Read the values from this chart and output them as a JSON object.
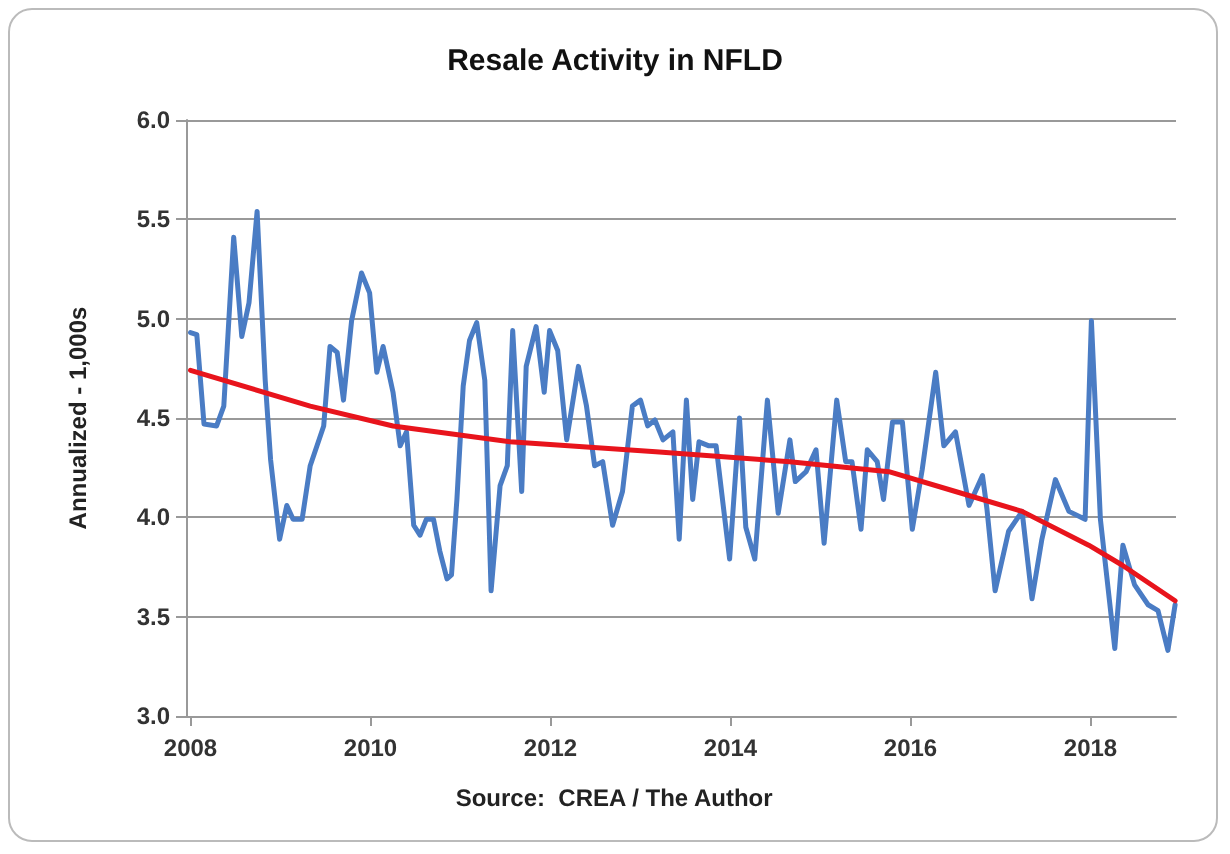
{
  "chart_data": {
    "type": "line",
    "title": "Resale Activity in NFLD",
    "ylabel": "Annualized - 1,000s",
    "annotations": [
      "Source:  CREA / The Author"
    ],
    "xlim": [
      2007.95,
      2018.95
    ],
    "xticks": [
      2008,
      2010,
      2012,
      2014,
      2016,
      2018
    ],
    "ylim": [
      3.0,
      6.0
    ],
    "yticks": [
      {
        "value": 3.0,
        "label": "3.0"
      },
      {
        "value": 3.5,
        "label": "3.5"
      },
      {
        "value": 4.0,
        "label": "4.0"
      },
      {
        "value": 4.5,
        "label": "4.5"
      },
      {
        "value": 5.0,
        "label": "5.0"
      },
      {
        "value": 5.5,
        "label": "5.5"
      },
      {
        "value": 6.0,
        "label": "6.0"
      }
    ],
    "grid": "y",
    "marker": "none",
    "line_style": "solid",
    "series": [
      {
        "color": "#4a7cc4",
        "x": [
          2008.0,
          2008.07,
          2008.15,
          2008.29,
          2008.37,
          2008.48,
          2008.57,
          2008.65,
          2008.74,
          2008.83,
          2008.89,
          2008.99,
          2009.07,
          2009.14,
          2009.24,
          2009.33,
          2009.48,
          2009.55,
          2009.63,
          2009.7,
          2009.79,
          2009.9,
          2009.99,
          2010.07,
          2010.14,
          2010.25,
          2010.33,
          2010.4,
          2010.48,
          2010.55,
          2010.62,
          2010.7,
          2010.77,
          2010.85,
          2010.9,
          2010.96,
          2011.03,
          2011.1,
          2011.18,
          2011.27,
          2011.34,
          2011.44,
          2011.52,
          2011.58,
          2011.68,
          2011.73,
          2011.84,
          2011.93,
          2011.99,
          2012.08,
          2012.18,
          2012.31,
          2012.4,
          2012.49,
          2012.58,
          2012.69,
          2012.8,
          2012.91,
          2013.0,
          2013.08,
          2013.16,
          2013.25,
          2013.36,
          2013.43,
          2013.51,
          2013.58,
          2013.65,
          2013.76,
          2013.84,
          2013.99,
          2014.1,
          2014.17,
          2014.27,
          2014.41,
          2014.53,
          2014.66,
          2014.72,
          2014.84,
          2014.95,
          2015.04,
          2015.18,
          2015.28,
          2015.35,
          2015.45,
          2015.52,
          2015.63,
          2015.7,
          2015.8,
          2015.91,
          2016.02,
          2016.13,
          2016.28,
          2016.37,
          2016.5,
          2016.65,
          2016.8,
          2016.85,
          2016.94,
          2017.09,
          2017.24,
          2017.35,
          2017.46,
          2017.61,
          2017.76,
          2017.94,
          2018.01,
          2018.11,
          2018.27,
          2018.36,
          2018.49,
          2018.64,
          2018.75,
          2018.86,
          2018.94
        ],
        "values": [
          4.93,
          4.92,
          4.47,
          4.46,
          4.56,
          5.41,
          4.91,
          5.08,
          5.54,
          4.69,
          4.29,
          3.89,
          4.06,
          3.99,
          3.99,
          4.26,
          4.46,
          4.86,
          4.83,
          4.59,
          4.99,
          5.23,
          5.13,
          4.73,
          4.86,
          4.63,
          4.36,
          4.43,
          3.96,
          3.91,
          3.99,
          3.99,
          3.83,
          3.69,
          3.71,
          4.09,
          4.66,
          4.89,
          4.98,
          4.69,
          3.63,
          4.16,
          4.26,
          4.94,
          4.13,
          4.76,
          4.96,
          4.63,
          4.94,
          4.84,
          4.39,
          4.76,
          4.56,
          4.26,
          4.28,
          3.96,
          4.13,
          4.56,
          4.59,
          4.46,
          4.49,
          4.39,
          4.43,
          3.89,
          4.59,
          4.09,
          4.38,
          4.36,
          4.36,
          3.79,
          4.5,
          3.95,
          3.79,
          4.59,
          4.02,
          4.39,
          4.18,
          4.23,
          4.34,
          3.87,
          4.59,
          4.28,
          4.28,
          3.94,
          4.34,
          4.28,
          4.09,
          4.48,
          4.48,
          3.94,
          4.24,
          4.73,
          4.36,
          4.43,
          4.06,
          4.21,
          4.04,
          3.63,
          3.93,
          4.03,
          3.59,
          3.89,
          4.19,
          4.03,
          3.99,
          4.99,
          3.99,
          3.34,
          3.86,
          3.66,
          3.56,
          3.53,
          3.33,
          3.56
        ]
      },
      {
        "color": "#e8141c",
        "x": [
          2008.0,
          2009.33,
          2010.25,
          2011.55,
          2013.17,
          2014.66,
          2015.76,
          2016.5,
          2017.24,
          2017.98,
          2018.35,
          2018.94
        ],
        "values": [
          4.74,
          4.56,
          4.46,
          4.38,
          4.33,
          4.28,
          4.23,
          4.13,
          4.03,
          3.86,
          3.76,
          3.58
        ]
      }
    ]
  }
}
